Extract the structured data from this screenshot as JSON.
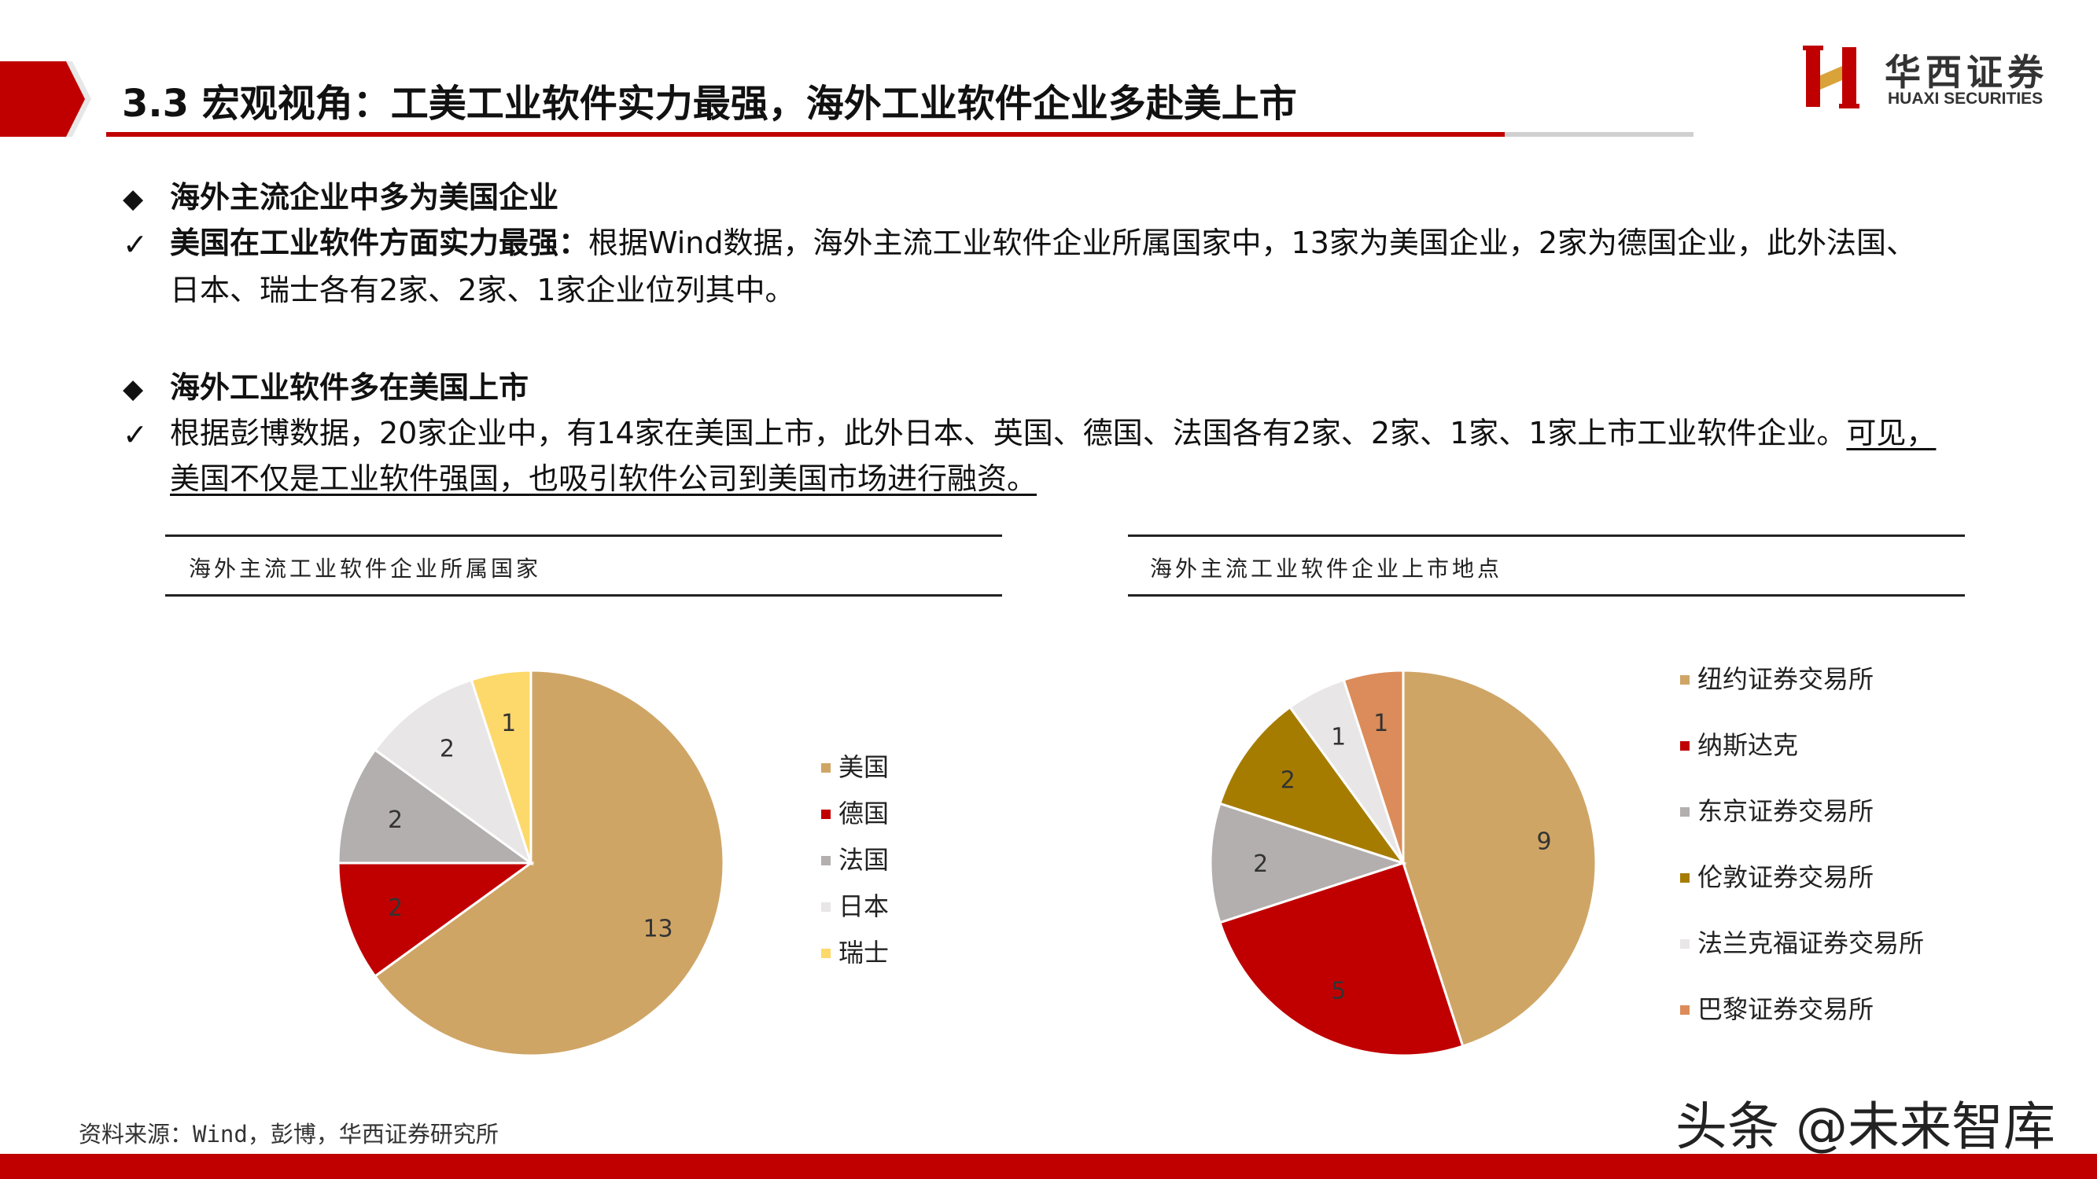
{
  "header": {
    "title": "3.3 宏观视角：工美工业软件实力最强，海外工业软件企业多赴美上市",
    "logo_cn": "华西证券",
    "logo_en": "HUAXI SECURITIES",
    "accent_color": "#c00000"
  },
  "section1": {
    "heading": "海外主流企业中多为美国企业",
    "point_bold": "美国在工业软件方面实力最强：",
    "point_text": "根据Wind数据，海外主流工业软件企业所属国家中，13家为美国企业，2家为德国企业，此外法国、",
    "point_text2": "日本、瑞士各有2家、2家、1家企业位列其中。"
  },
  "section2": {
    "heading": "海外工业软件多在美国上市",
    "point_text": "根据彭博数据，20家企业中，有14家在美国上市，此外日本、英国、德国、法国各有2家、2家、1家、1家上市工业软件企业。",
    "point_underlined": "可见，",
    "point_text2": "美国不仅是工业软件强国，也吸引软件公司到美国市场进行融资。"
  },
  "chart_data": [
    {
      "type": "pie",
      "title": "海外主流工业软件企业所属国家",
      "categories": [
        "美国",
        "德国",
        "法国",
        "日本",
        "瑞士"
      ],
      "values": [
        13,
        2,
        2,
        2,
        1
      ],
      "colors": [
        "#cfa566",
        "#c00000",
        "#b3afae",
        "#e8e6e6",
        "#fdd96b"
      ],
      "legend": "right"
    },
    {
      "type": "pie",
      "title": "海外主流工业软件企业上市地点",
      "categories": [
        "纽约证券交易所",
        "纳斯达克",
        "东京证券交易所",
        "伦敦证券交易所",
        "法兰克福证券交易所",
        "巴黎证券交易所"
      ],
      "values": [
        9,
        5,
        2,
        2,
        1,
        1
      ],
      "colors": [
        "#cfa566",
        "#c00000",
        "#b3afae",
        "#a67c00",
        "#e8e6e6",
        "#db8c5a"
      ],
      "legend": "right"
    }
  ],
  "footer": {
    "source": "资料来源：Wind，彭博，华西证券研究所",
    "watermark": "头条 @未来智库"
  }
}
